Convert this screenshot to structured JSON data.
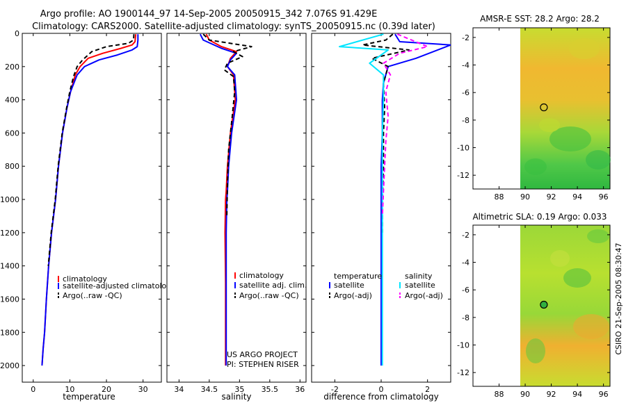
{
  "header": {
    "title_line1": "Argo profile: AO 1900144_97 14-Sep-2005 20050915_342 7.076S 91.429E",
    "title_line2": "Climatology: CARS2000. Satellite-adjusted climatology: synTS_20050915.nc (0.39d later)"
  },
  "colors": {
    "climatology": "#ff0000",
    "satellite": "#0000ff",
    "argo": "#000000",
    "sal_satellite": "#00e5ff",
    "sal_argo": "#ff00ff"
  },
  "annotations": {
    "project": "US ARGO PROJECT",
    "pi": "PI: STEPHEN RISER",
    "credit": "CSIRO 21-Sep-2005 08:30:47"
  },
  "chart_data": [
    {
      "id": "temperature",
      "type": "line",
      "xlabel": "temperature",
      "ylabel": "",
      "xlim": [
        -3,
        35
      ],
      "ylim": [
        2100,
        0
      ],
      "xticks": [
        0,
        10,
        20,
        30
      ],
      "xtick_labels": [
        "0",
        "10",
        "20",
        "30"
      ],
      "yticks": [
        0,
        200,
        400,
        600,
        800,
        1000,
        1200,
        1400,
        1600,
        1800,
        2000
      ],
      "ytick_labels": [
        "0",
        "200",
        "400",
        "600",
        "800",
        "1000",
        "1200",
        "1400",
        "1600",
        "1800",
        "2000"
      ],
      "legend": {
        "position": "middle-right",
        "entries": [
          "climatology",
          "satellite-adjusted climatology",
          "Argo(..raw -QC)"
        ]
      },
      "series": [
        {
          "name": "climatology",
          "color": "#ff0000",
          "style": "solid",
          "x": [
            28.0,
            27.8,
            27.0,
            24.0,
            19.0,
            15.0,
            12.8,
            11.5,
            10.2,
            9.2,
            8.0,
            6.9,
            6.1,
            5.0,
            4.2,
            3.6,
            3.1,
            2.7,
            2.4
          ],
          "y": [
            5,
            50,
            70,
            90,
            120,
            150,
            200,
            250,
            350,
            450,
            600,
            800,
            1000,
            1200,
            1400,
            1600,
            1800,
            1900,
            2000
          ]
        },
        {
          "name": "satellite-adjusted climatology",
          "color": "#0000ff",
          "style": "solid",
          "x": [
            28.6,
            28.6,
            28.4,
            27.0,
            23.0,
            18.0,
            14.0,
            12.0,
            10.2,
            9.2,
            8.0,
            6.9,
            6.1,
            5.0,
            4.2,
            3.6,
            3.1,
            2.7,
            2.4
          ],
          "y": [
            5,
            40,
            80,
            100,
            130,
            160,
            200,
            250,
            350,
            450,
            600,
            800,
            1000,
            1200,
            1400,
            1600,
            1800,
            1900,
            2000
          ]
        },
        {
          "name": "Argo(..raw -QC)",
          "color": "#000000",
          "style": "dashed",
          "x": [
            27.5,
            27.4,
            26.0,
            20.0,
            16.0,
            13.5,
            12.0,
            11.0,
            10.0,
            9.1,
            7.9,
            6.8,
            6.0,
            4.9,
            4.1
          ],
          "y": [
            5,
            40,
            60,
            80,
            110,
            160,
            200,
            260,
            350,
            450,
            600,
            800,
            1000,
            1200,
            1400
          ]
        }
      ]
    },
    {
      "id": "salinity",
      "type": "line",
      "xlabel": "salinity",
      "ylabel": "",
      "xlim": [
        33.8,
        36.1
      ],
      "ylim": [
        2100,
        0
      ],
      "xticks": [
        34,
        34.5,
        35,
        35.5,
        36
      ],
      "xtick_labels": [
        "34",
        "34.5",
        "35",
        "35.5",
        "36"
      ],
      "legend": {
        "position": "middle-right",
        "entries": [
          "climatology",
          "satellite adj. clim.",
          "Argo(..raw -QC)"
        ]
      },
      "series": [
        {
          "name": "climatology",
          "color": "#ff0000",
          "style": "solid",
          "x": [
            34.45,
            34.5,
            34.7,
            34.95,
            34.85,
            34.8,
            34.9,
            34.93,
            34.85,
            34.8,
            34.78,
            34.77,
            34.76,
            34.77,
            34.77,
            34.77
          ],
          "y": [
            5,
            40,
            80,
            110,
            150,
            200,
            250,
            400,
            600,
            800,
            950,
            1000,
            1200,
            1500,
            1800,
            2000
          ]
        },
        {
          "name": "satellite adj. clim.",
          "color": "#0000ff",
          "style": "solid",
          "x": [
            34.35,
            34.4,
            34.7,
            34.95,
            34.85,
            34.8,
            34.92,
            34.95,
            34.87,
            34.82,
            34.8,
            34.79,
            34.78,
            34.78,
            34.78,
            34.78
          ],
          "y": [
            5,
            40,
            90,
            120,
            160,
            200,
            250,
            400,
            600,
            800,
            950,
            1000,
            1200,
            1500,
            1800,
            2000
          ]
        },
        {
          "name": "Argo(..raw -QC)",
          "color": "#000000",
          "style": "dashed",
          "x": [
            34.4,
            34.5,
            35.2,
            34.9,
            35.05,
            34.8,
            34.75,
            34.9,
            34.92,
            34.88,
            34.82,
            34.8,
            34.79
          ],
          "y": [
            5,
            40,
            80,
            110,
            140,
            180,
            220,
            260,
            350,
            500,
            700,
            900,
            1100
          ]
        }
      ]
    },
    {
      "id": "difference",
      "type": "line",
      "xlabel": "difference from climatology",
      "ylabel": "",
      "xlim": [
        -3,
        3
      ],
      "ylim": [
        2100,
        0
      ],
      "xticks": [
        -2,
        0,
        2
      ],
      "xtick_labels": [
        "-2",
        "0",
        "2"
      ],
      "legend": {
        "position": "top-right",
        "entries": [
          "temperature",
          "satellite",
          "Argo(-adj)",
          "salinity",
          "satellite",
          "Argo(-adj)"
        ]
      },
      "series": [
        {
          "name": "temperature satellite",
          "color": "#0000ff",
          "style": "solid",
          "x": [
            0.6,
            0.8,
            3.0,
            1.5,
            0.3,
            0.1,
            0.05,
            0.05,
            0.0,
            0.0,
            0.0,
            0.0
          ],
          "y": [
            5,
            50,
            70,
            150,
            200,
            300,
            400,
            600,
            800,
            1200,
            1600,
            2000
          ]
        },
        {
          "name": "temperature Argo(-adj)",
          "color": "#000000",
          "style": "dashed",
          "x": [
            0.5,
            0.2,
            -0.8,
            1.2,
            -0.4,
            0.3,
            0.1,
            0.15,
            0.1,
            0.1,
            0.05,
            0.05
          ],
          "y": [
            5,
            40,
            70,
            100,
            150,
            200,
            300,
            450,
            600,
            800,
            1000,
            1200
          ]
        },
        {
          "name": "salinity satellite",
          "color": "#00e5ff",
          "style": "solid",
          "x": [
            0.1,
            -1.8,
            0.3,
            -0.5,
            0.1,
            0.1,
            0.05,
            0.05,
            0.05,
            0.05,
            0.05
          ],
          "y": [
            5,
            80,
            100,
            180,
            250,
            400,
            600,
            800,
            1200,
            1600,
            2000
          ]
        },
        {
          "name": "salinity Argo(-adj)",
          "color": "#ff00ff",
          "style": "dashed",
          "x": [
            0.7,
            2.0,
            0.8,
            0.1,
            0.4,
            0.2,
            0.3,
            0.2,
            0.15,
            0.1,
            0.05
          ],
          "y": [
            5,
            80,
            120,
            180,
            250,
            350,
            500,
            650,
            800,
            950,
            1100
          ]
        }
      ]
    },
    {
      "id": "amsre_sst",
      "type": "heatmap",
      "title": "AMSR-E SST: 28.2 Argo: 28.2",
      "xlim": [
        86,
        96.5
      ],
      "ylim": [
        -13,
        -1.3
      ],
      "xticks": [
        88,
        90,
        92,
        94,
        96
      ],
      "xtick_labels": [
        "88",
        "90",
        "92",
        "94",
        "96"
      ],
      "yticks": [
        -2,
        -4,
        -6,
        -8,
        -10,
        -12
      ],
      "ytick_labels": [
        "-2",
        "-4",
        "-6",
        "-8",
        "-10",
        "-12"
      ],
      "data_extent_lon": [
        90,
        96.5
      ],
      "marker": {
        "lon": 91.429,
        "lat": -7.076,
        "filled": false
      }
    },
    {
      "id": "altimetric_sla",
      "type": "heatmap",
      "title": "Altimetric SLA: 0.19 Argo: 0.033",
      "xlim": [
        86,
        96.5
      ],
      "ylim": [
        -13,
        -1.3
      ],
      "xticks": [
        88,
        90,
        92,
        94,
        96
      ],
      "xtick_labels": [
        "88",
        "90",
        "92",
        "94",
        "96"
      ],
      "yticks": [
        -2,
        -4,
        -6,
        -8,
        -10,
        -12
      ],
      "ytick_labels": [
        "-2",
        "-4",
        "-6",
        "-8",
        "-10",
        "-12"
      ],
      "data_extent_lon": [
        90,
        96.5
      ],
      "marker": {
        "lon": 91.429,
        "lat": -7.076,
        "filled": true
      }
    }
  ]
}
